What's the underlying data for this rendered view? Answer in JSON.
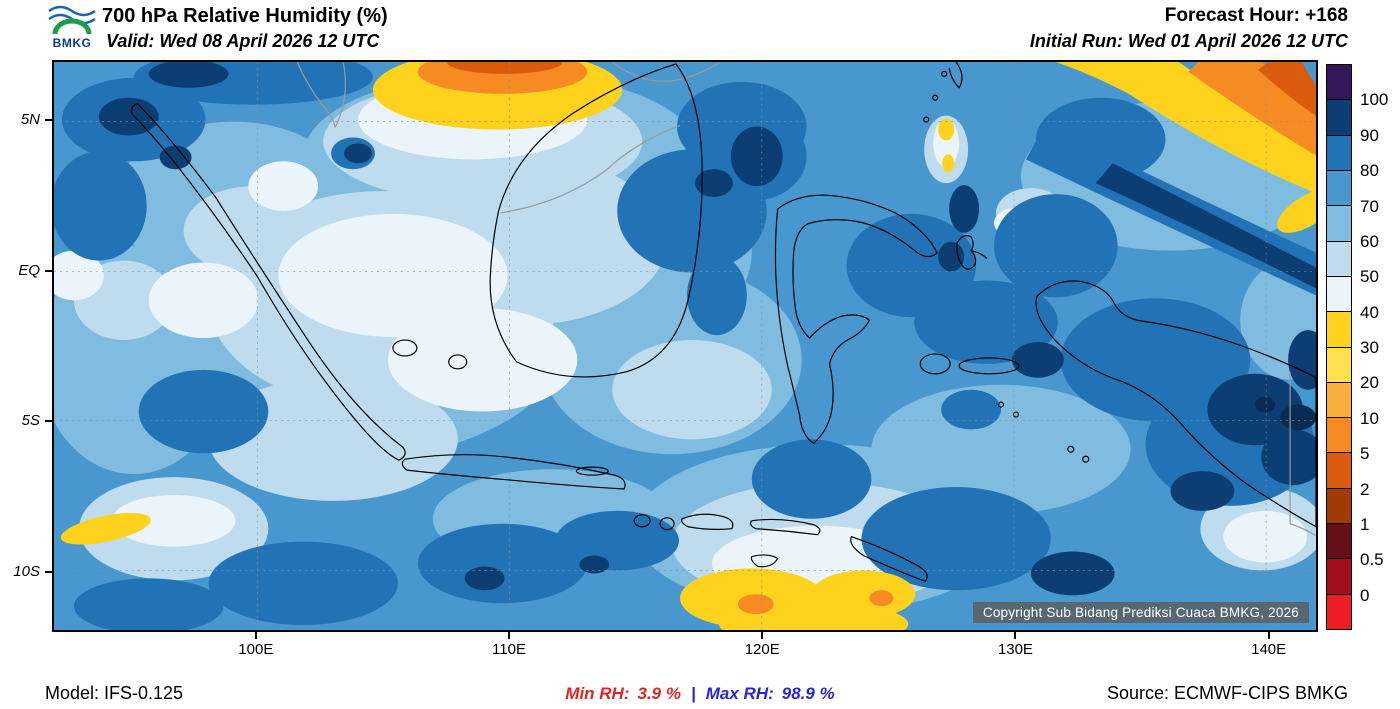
{
  "header": {
    "logo_text": "BMKG",
    "title": "700 hPa Relative Humidity (%)",
    "valid": "Valid: Wed 08 April 2026 12 UTC",
    "forecast_hour": "Forecast Hour: +168",
    "initial_run": "Initial Run: Wed 01 April 2026 12 UTC"
  },
  "map": {
    "copyright": "Copyright Sub Bidang Prediksi Cuaca BMKG, 2026",
    "y_ticks": [
      {
        "label": "5N",
        "pos": 10.5
      },
      {
        "label": "EQ",
        "pos": 36.9
      },
      {
        "label": "5S",
        "pos": 63.1
      },
      {
        "label": "10S",
        "pos": 89.5
      }
    ],
    "x_ticks": [
      {
        "label": "100E",
        "pos": 16.1
      },
      {
        "label": "110E",
        "pos": 36.1
      },
      {
        "label": "120E",
        "pos": 56.1
      },
      {
        "label": "130E",
        "pos": 76.1
      },
      {
        "label": "140E",
        "pos": 96.1
      }
    ]
  },
  "colorbar": {
    "labels": [
      "100",
      "90",
      "80",
      "70",
      "60",
      "50",
      "40",
      "30",
      "20",
      "10",
      "5",
      "2",
      "1",
      "0.5",
      "0"
    ],
    "colors": [
      "#33175c",
      "#0c3e73",
      "#2272b6",
      "#4897ce",
      "#7fbcdf",
      "#bedcee",
      "#ebf4fa",
      "#ffd21e",
      "#ffdf4d",
      "#fbae3a",
      "#f58b22",
      "#da5a0e",
      "#a13a05",
      "#641016",
      "#a3101d",
      "#ee1c25"
    ]
  },
  "footer": {
    "model": "Model: IFS-0.125",
    "min_label": "Min RH:",
    "min_value": "3.9 %",
    "separator": "|",
    "max_label": "Max RH:",
    "max_value": "98.9 %",
    "source": "Source: ECMWF-CIPS BMKG"
  },
  "chart_data": {
    "type": "heatmap",
    "title": "700 hPa Relative Humidity (%)",
    "variable": "Relative Humidity",
    "pressure_level_hpa": 700,
    "units": "%",
    "valid_time": "Wed 08 April 2026 12 UTC",
    "initial_run": "Wed 01 April 2026 12 UTC",
    "forecast_hour": 168,
    "model": "IFS-0.125",
    "source": "ECMWF-CIPS BMKG",
    "min_rh": 3.9,
    "max_rh": 98.9,
    "region": "Indonesia",
    "lon_range_deg_e": [
      92,
      142
    ],
    "lat_range_deg": [
      -12,
      7
    ],
    "lon_tick_labels": [
      "100E",
      "110E",
      "120E",
      "130E",
      "140E"
    ],
    "lat_tick_labels": [
      "5N",
      "EQ",
      "5S",
      "10S"
    ],
    "colorbar_boundary_levels": [
      100,
      90,
      80,
      70,
      60,
      50,
      40,
      30,
      20,
      10,
      5,
      2,
      1,
      0.5,
      0
    ],
    "colorbar_colors_top_to_bottom": [
      "#33175c",
      "#0c3e73",
      "#2272b6",
      "#4897ce",
      "#7fbcdf",
      "#bedcee",
      "#ebf4fa",
      "#ffd21e",
      "#ffdf4d",
      "#fbae3a",
      "#f58b22",
      "#da5a0e",
      "#a13a05",
      "#641016",
      "#a3101d",
      "#ee1c25"
    ],
    "legend_position": "right",
    "grid": true
  }
}
